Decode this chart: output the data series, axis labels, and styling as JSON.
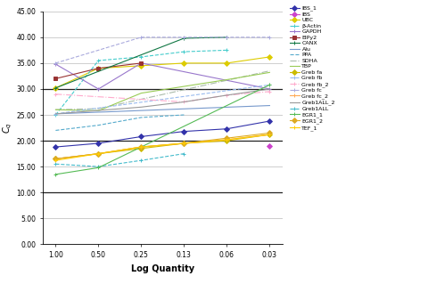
{
  "x_labels": [
    "1.00",
    "0.50",
    "0.25",
    "0.13",
    "0.06",
    "0.03"
  ],
  "x_positions": [
    0,
    1,
    2,
    3,
    4,
    5
  ],
  "xlabel": "Log Quantity",
  "ylim": [
    0,
    45
  ],
  "ytick_vals": [
    0,
    5,
    10,
    15,
    20,
    25,
    30,
    35,
    40,
    45
  ],
  "ytick_labels": [
    "0.00",
    "5.00",
    "10.00",
    "15.00",
    "20.00",
    "25.00",
    "30.00",
    "35.00",
    "40.00",
    "45.00"
  ],
  "bold_ylines": [
    10,
    20,
    30
  ],
  "thin_ylines": [
    0,
    5,
    15,
    25,
    35,
    40,
    45
  ],
  "bg_color": "#ffffff",
  "series": [
    {
      "name": "IBS_1",
      "color": "#3333aa",
      "marker": "D",
      "ls": "-",
      "values": [
        18.8,
        19.5,
        20.8,
        21.8,
        22.3,
        23.8
      ]
    },
    {
      "name": "IBS",
      "color": "#cc44cc",
      "marker": "D",
      "ls": "-",
      "values": [
        null,
        null,
        null,
        null,
        null,
        19.0
      ]
    },
    {
      "name": "UBC",
      "color": "#ddcc00",
      "marker": "D",
      "ls": "-",
      "values": [
        30.2,
        34.0,
        34.5,
        35.0,
        35.0,
        36.2
      ]
    },
    {
      "name": "β-Actin",
      "color": "#44cccc",
      "marker": "+",
      "ls": "--",
      "values": [
        25.0,
        35.5,
        36.2,
        37.2,
        37.5,
        null
      ]
    },
    {
      "name": "GAPDH",
      "color": "#9977cc",
      "marker": "+",
      "ls": "-",
      "values": [
        34.8,
        30.0,
        35.0,
        null,
        null,
        30.0
      ]
    },
    {
      "name": "EIPy2",
      "color": "#993333",
      "marker": "s",
      "ls": "-",
      "values": [
        32.0,
        34.0,
        35.0,
        null,
        null,
        null
      ]
    },
    {
      "name": "CANX",
      "color": "#117744",
      "marker": "+",
      "ls": "-",
      "values": [
        30.2,
        null,
        null,
        39.8,
        40.0,
        null
      ]
    },
    {
      "name": "Alu",
      "color": "#7799cc",
      "marker": null,
      "ls": "-",
      "values": [
        25.2,
        null,
        null,
        null,
        null,
        26.8
      ]
    },
    {
      "name": "PPA",
      "color": "#55aacc",
      "marker": null,
      "ls": "--",
      "values": [
        22.0,
        23.0,
        24.5,
        25.0,
        null,
        null
      ]
    },
    {
      "name": "SDHA",
      "color": "#aabbaa",
      "marker": null,
      "ls": "-.",
      "values": [
        26.0,
        26.2,
        null,
        null,
        null,
        33.5
      ]
    },
    {
      "name": "TBP",
      "color": "#99cc55",
      "marker": null,
      "ls": "-",
      "values": [
        26.0,
        25.8,
        29.2,
        30.5,
        31.8,
        33.2
      ]
    },
    {
      "name": "Greb fa",
      "color": "#ccbb00",
      "marker": "D",
      "ls": "-",
      "values": [
        16.5,
        17.5,
        18.5,
        19.5,
        20.0,
        21.2
      ]
    },
    {
      "name": "Greb fb",
      "color": "#99bbee",
      "marker": "+",
      "ls": "--",
      "values": [
        25.2,
        null,
        null,
        null,
        null,
        30.8
      ]
    },
    {
      "name": "Greb fb_2",
      "color": "#ffaacc",
      "marker": "+",
      "ls": "-.",
      "values": [
        29.0,
        null,
        null,
        27.5,
        28.8,
        29.5
      ]
    },
    {
      "name": "Greb fc",
      "color": "#aaaadd",
      "marker": "+",
      "ls": "--",
      "values": [
        35.0,
        null,
        40.0,
        40.0,
        40.0,
        40.0
      ]
    },
    {
      "name": "Greb fc_2",
      "color": "#ffaa55",
      "marker": "+",
      "ls": "-",
      "values": [
        16.5,
        17.5,
        18.8,
        19.5,
        20.2,
        21.2
      ]
    },
    {
      "name": "Greb1ALL_2",
      "color": "#999999",
      "marker": null,
      "ls": "-",
      "values": [
        25.2,
        null,
        26.5,
        27.5,
        28.8,
        30.0
      ]
    },
    {
      "name": "Greb1ALL",
      "color": "#44bbcc",
      "marker": "+",
      "ls": "--",
      "values": [
        15.5,
        15.0,
        16.2,
        17.5,
        null,
        null
      ]
    },
    {
      "name": "EGR1_1",
      "color": "#55bb55",
      "marker": "+",
      "ls": "-",
      "values": [
        13.5,
        14.8,
        null,
        null,
        null,
        30.8
      ]
    },
    {
      "name": "EGR1_2",
      "color": "#ddaa22",
      "marker": "D",
      "ls": "-",
      "values": [
        16.5,
        17.5,
        18.8,
        19.5,
        20.5,
        21.5
      ]
    },
    {
      "name": "TEF_1",
      "color": "#ffcc00",
      "marker": "+",
      "ls": "-",
      "values": [
        16.2,
        17.5,
        18.8,
        19.5,
        20.2,
        21.2
      ]
    }
  ]
}
